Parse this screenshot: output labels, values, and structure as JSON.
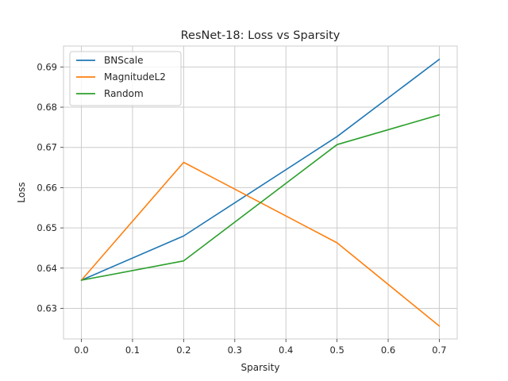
{
  "chart_data": {
    "type": "line",
    "title": "ResNet-18: Loss vs Sparsity",
    "xlabel": "Sparsity",
    "ylabel": "Loss",
    "xlim": [
      -0.035,
      0.735
    ],
    "ylim": [
      0.6224,
      0.6952
    ],
    "x_ticks": [
      0.0,
      0.1,
      0.2,
      0.3,
      0.4,
      0.5,
      0.6,
      0.7
    ],
    "x_tick_labels": [
      "0.0",
      "0.1",
      "0.2",
      "0.3",
      "0.4",
      "0.5",
      "0.6",
      "0.7"
    ],
    "y_ticks": [
      0.63,
      0.64,
      0.65,
      0.66,
      0.67,
      0.68,
      0.69
    ],
    "y_tick_labels": [
      "0.63",
      "0.64",
      "0.65",
      "0.66",
      "0.67",
      "0.68",
      "0.69"
    ],
    "grid": true,
    "legend_position": "top-left",
    "series": [
      {
        "name": "BNScale",
        "color": "#1f77b4",
        "x": [
          0.0,
          0.2,
          0.5,
          0.7
        ],
        "y": [
          0.637,
          0.648,
          0.6727,
          0.6919
        ]
      },
      {
        "name": "MagnitudeL2",
        "color": "#ff7f0e",
        "x": [
          0.0,
          0.2,
          0.5,
          0.7
        ],
        "y": [
          0.637,
          0.6663,
          0.6463,
          0.6256
        ]
      },
      {
        "name": "Random",
        "color": "#2ca02c",
        "x": [
          0.0,
          0.2,
          0.5,
          0.7
        ],
        "y": [
          0.637,
          0.6418,
          0.6707,
          0.6781
        ]
      }
    ]
  }
}
